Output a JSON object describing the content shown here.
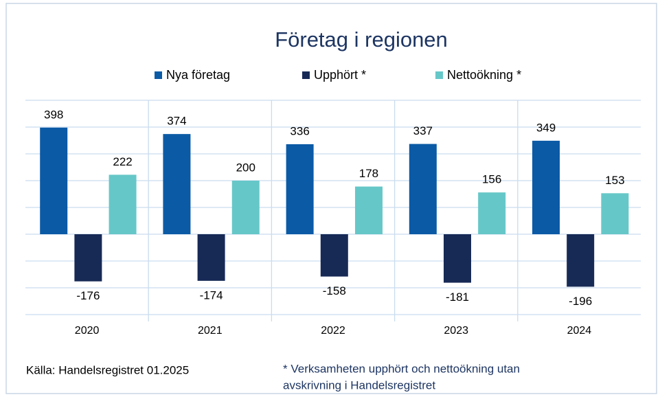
{
  "chart_data": {
    "type": "bar",
    "title": "Företag i regionen",
    "categories": [
      "2020",
      "2021",
      "2022",
      "2023",
      "2024"
    ],
    "series": [
      {
        "name": "Nya företag",
        "color": "#0b5aa6",
        "values": [
          398,
          374,
          336,
          337,
          349
        ]
      },
      {
        "name": "Upphört *",
        "color": "#172a56",
        "values": [
          -176,
          -174,
          -158,
          -181,
          -196
        ]
      },
      {
        "name": "Nettoökning *",
        "color": "#66c7c8",
        "values": [
          222,
          200,
          178,
          156,
          153
        ]
      }
    ],
    "ylim": [
      -300,
      500
    ],
    "yticks": [
      -300,
      -200,
      -100,
      0,
      100,
      200,
      300,
      400,
      500
    ],
    "grid": true,
    "source": "Källa: Handelsregistret 01.2025",
    "footnote": [
      "* Verksamheten upphört och nettoökning utan",
      "avskrivning i Handelsregistret"
    ]
  }
}
